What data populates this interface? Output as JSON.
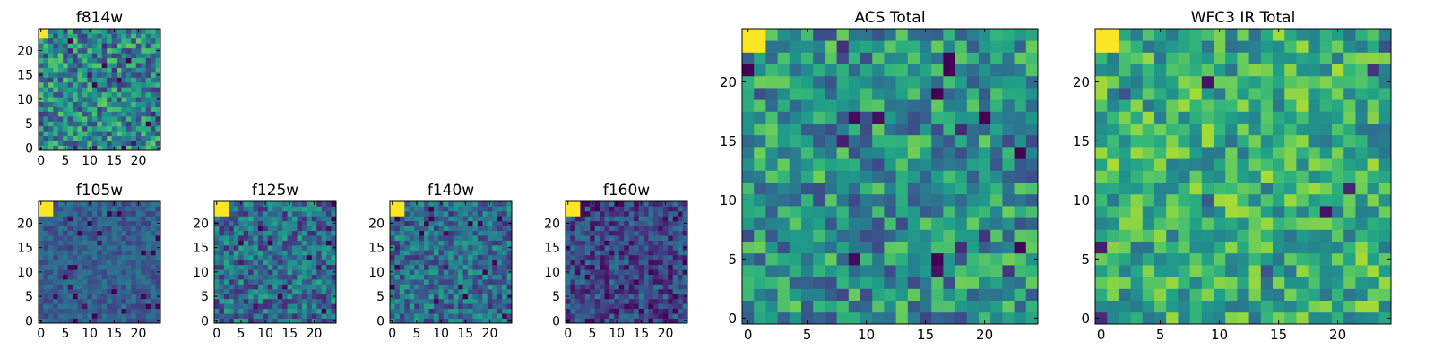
{
  "chart_data": {
    "type": "heatmap",
    "colormap": "viridis",
    "colormap_stops": [
      "#440154",
      "#482878",
      "#3e4989",
      "#31688e",
      "#26828e",
      "#1f9e89",
      "#35b779",
      "#6ece58",
      "#b5de2b",
      "#fde725"
    ],
    "grid_size": 25,
    "origin": "lower",
    "panels": [
      {
        "id": "f814w",
        "title": "f814w",
        "xticks": [
          0,
          5,
          10,
          15,
          20
        ],
        "yticks": [
          0,
          5,
          10,
          15,
          20
        ],
        "base_level": 0.47,
        "noise_spread": 0.3,
        "bright_corner": "top-left",
        "bright_corner_size": 2
      },
      {
        "id": "f105w",
        "title": "f105w",
        "xticks": [
          0,
          5,
          10,
          15,
          20
        ],
        "yticks": [
          0,
          5,
          10,
          15,
          20
        ],
        "base_level": 0.3,
        "noise_spread": 0.12,
        "bright_corner": "top-left",
        "bright_corner_size": 3
      },
      {
        "id": "f125w",
        "title": "f125w",
        "xticks": [
          0,
          5,
          10,
          15,
          20
        ],
        "yticks": [
          0,
          5,
          10,
          15,
          20
        ],
        "base_level": 0.36,
        "noise_spread": 0.25,
        "bright_corner": "top-left",
        "bright_corner_size": 3
      },
      {
        "id": "f140w",
        "title": "f140w",
        "xticks": [
          0,
          5,
          10,
          15,
          20
        ],
        "yticks": [
          0,
          5,
          10,
          15,
          20
        ],
        "base_level": 0.37,
        "noise_spread": 0.22,
        "bright_corner": "top-left",
        "bright_corner_size": 3
      },
      {
        "id": "f160w",
        "title": "f160w",
        "xticks": [
          0,
          5,
          10,
          15,
          20
        ],
        "yticks": [
          0,
          5,
          10,
          15,
          20
        ],
        "base_level": 0.22,
        "noise_spread": 0.2,
        "bright_corner": "top-left",
        "bright_corner_size": 3
      },
      {
        "id": "acs-total",
        "title": "ACS Total",
        "xticks": [
          0,
          5,
          10,
          15,
          20
        ],
        "yticks": [
          0,
          5,
          10,
          15,
          20
        ],
        "base_level": 0.5,
        "noise_spread": 0.28,
        "bright_corner": "top-left",
        "bright_corner_size": 2
      },
      {
        "id": "wfc3-ir-total",
        "title": "WFC3 IR Total",
        "xticks": [
          0,
          5,
          10,
          15,
          20
        ],
        "yticks": [
          0,
          5,
          10,
          15,
          20
        ],
        "base_level": 0.62,
        "noise_spread": 0.25,
        "bright_corner": "top-left",
        "bright_corner_size": 2
      }
    ]
  }
}
